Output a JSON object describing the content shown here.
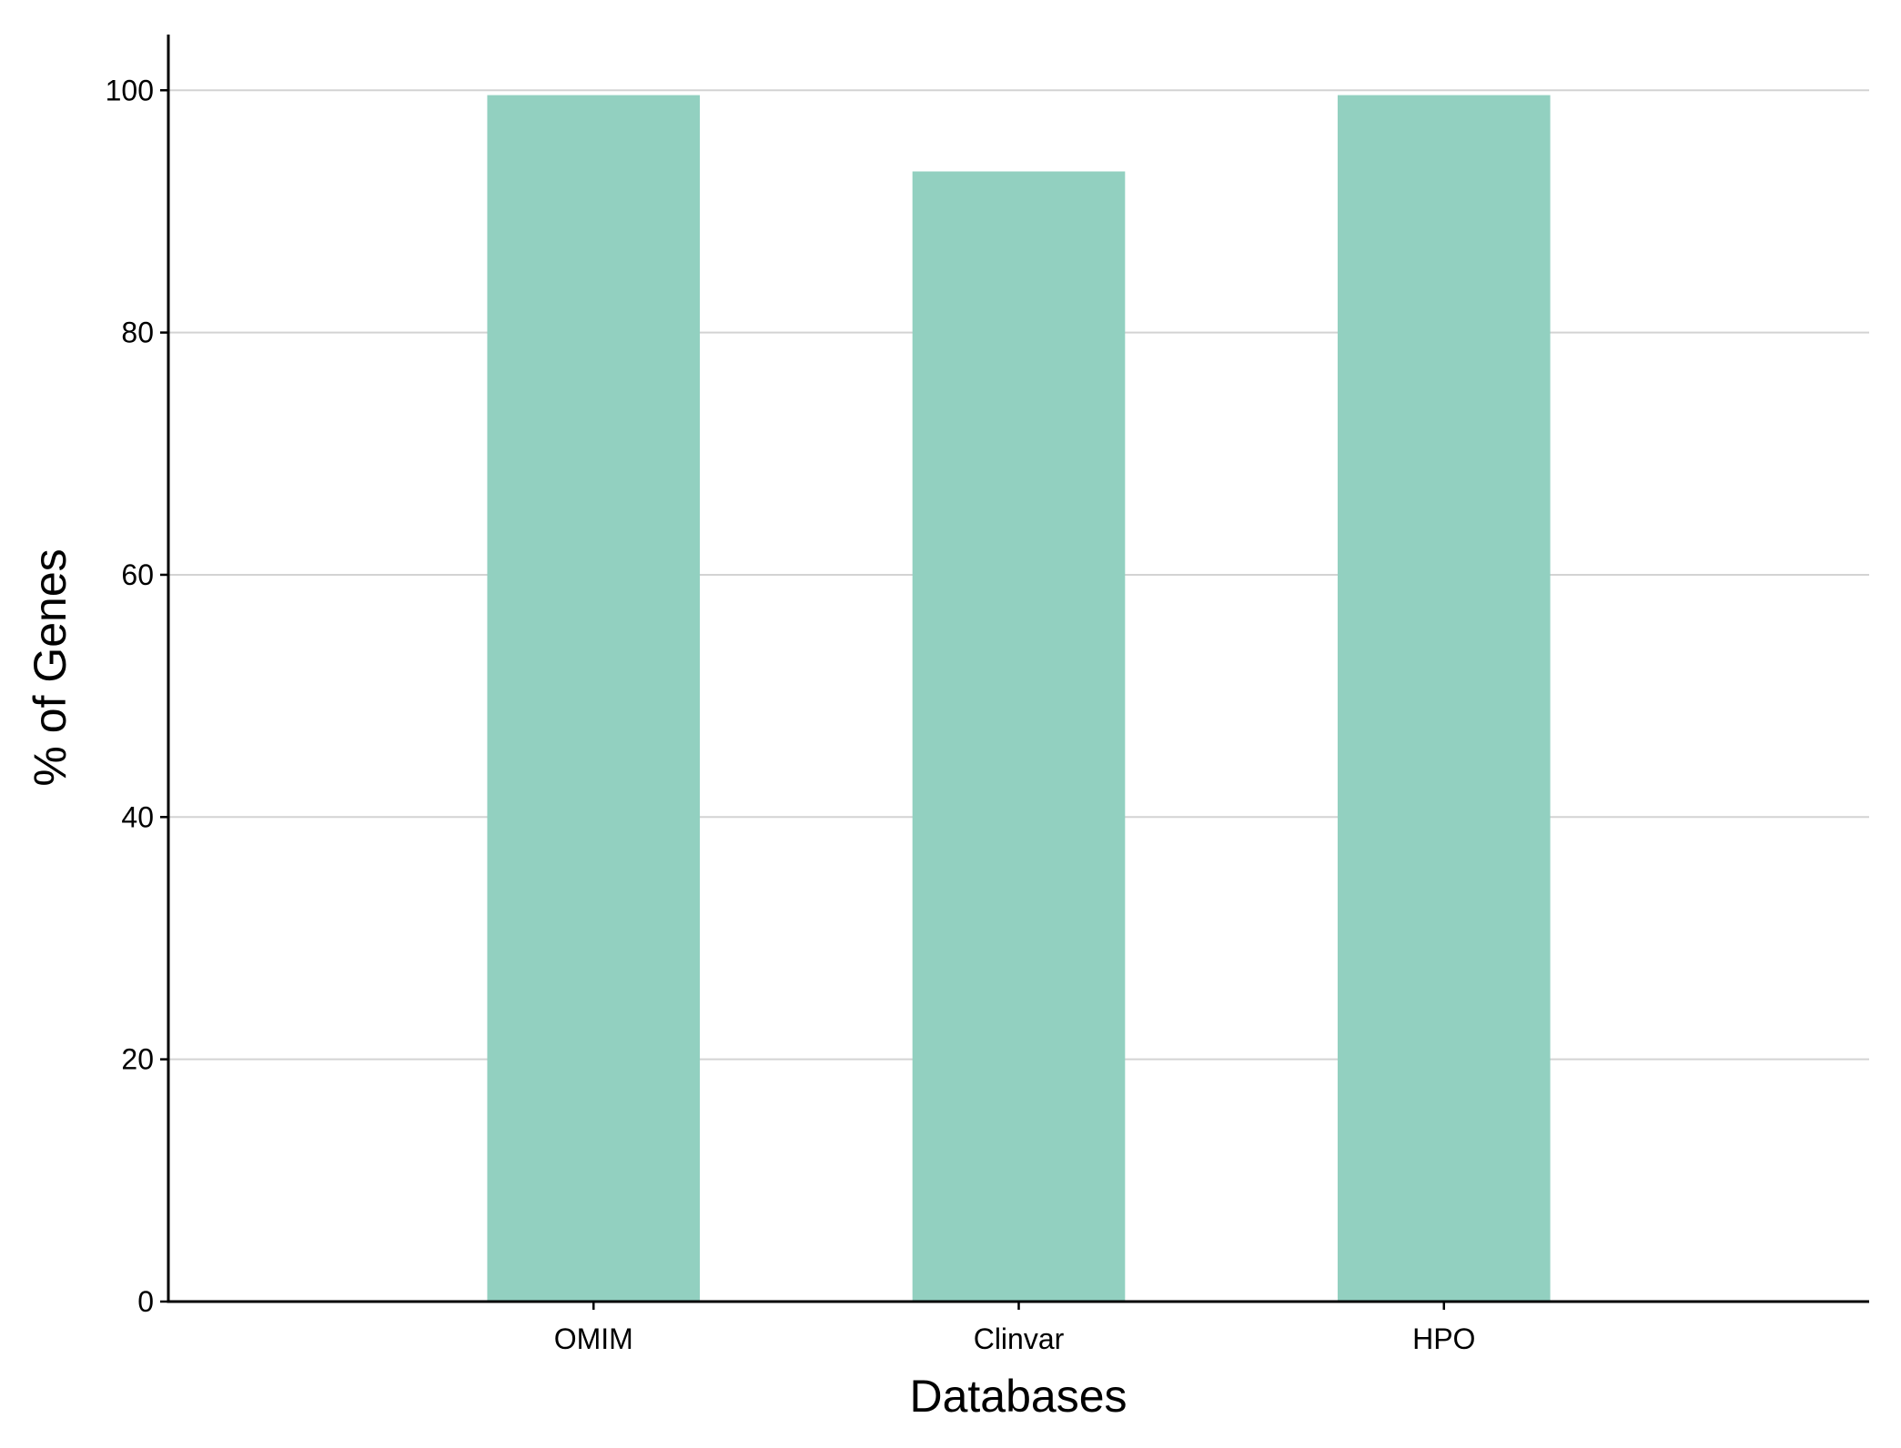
{
  "chart_data": {
    "type": "bar",
    "title": "",
    "xlabel": "Databases",
    "ylabel": "% of Genes",
    "categories": [
      "OMIM",
      "Clinvar",
      "HPO"
    ],
    "values": [
      99.6,
      93.3,
      99.6
    ],
    "ylim": [
      0,
      104.6
    ],
    "yticks": [
      0,
      20,
      40,
      60,
      80,
      100
    ],
    "grid": "horizontal",
    "bar_color": "#92d0c0",
    "grid_color": "#d3d3d3",
    "axis_color": "#000000"
  }
}
